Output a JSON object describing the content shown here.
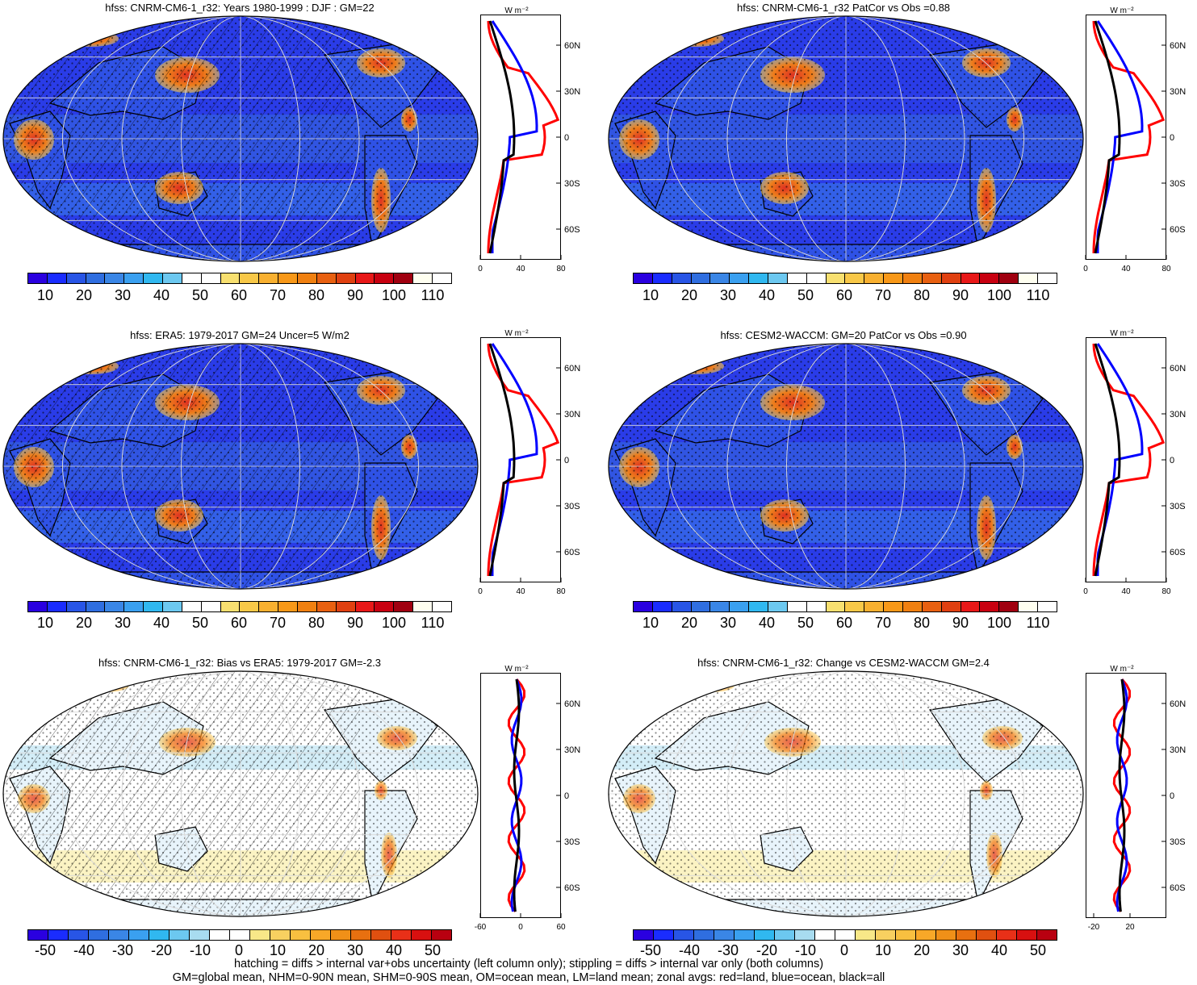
{
  "panels": [
    {
      "title": "hfss: CNRM-CM6-1_r32: Years 1980-1999 : DJF : GM=22",
      "kind": "clim",
      "hatch": true
    },
    {
      "title": "hfss: CNRM-CM6-1_r32 PatCor vs Obs =0.88",
      "kind": "clim",
      "hatch": false
    },
    {
      "title": "hfss: ERA5: 1979-2017 GM=24 Uncer=5 W/m2",
      "kind": "clim",
      "hatch": true
    },
    {
      "title": "hfss: CESM2-WACCM: GM=20 PatCor vs Obs =0.90",
      "kind": "clim",
      "hatch": false
    },
    {
      "title": "hfss: CNRM-CM6-1_r32: Bias vs ERA5: 1979-2017 GM=-2.3",
      "kind": "diff",
      "hatch": true
    },
    {
      "title": "hfss: CNRM-CM6-1_r32: Change vs CESM2-WACCM GM=2.4",
      "kind": "diff",
      "hatch": false
    }
  ],
  "colorbar_clim": {
    "labels": [
      "10",
      "20",
      "30",
      "40",
      "50",
      "60",
      "70",
      "80",
      "90",
      "100",
      "110"
    ],
    "colors": [
      "#2a00e0",
      "#1a2cff",
      "#2855e6",
      "#2f6ee0",
      "#3a86e6",
      "#3aa0f0",
      "#30b8f0",
      "#6cc8f0",
      "#ffffff",
      "#ffffff",
      "#f8e070",
      "#f8c848",
      "#f8b030",
      "#f89818",
      "#f08010",
      "#e86010",
      "#e04010",
      "#e81818",
      "#c80010",
      "#a00010",
      "#fffff0",
      "#ffffff"
    ]
  },
  "colorbar_diff": {
    "labels": [
      "-50",
      "-40",
      "-30",
      "-20",
      "-10",
      "0",
      "10",
      "20",
      "30",
      "40",
      "50"
    ],
    "colors": [
      "#2a00e0",
      "#1a2cff",
      "#2855e6",
      "#2f6ee0",
      "#3a86e6",
      "#3aa0f0",
      "#30b8f0",
      "#6cc8f0",
      "#a8dcf0",
      "#ffffff",
      "#ffffff",
      "#f8e888",
      "#f8d060",
      "#f8c040",
      "#f8a828",
      "#f09018",
      "#e87010",
      "#e05010",
      "#e83018",
      "#d81010",
      "#b80010"
    ]
  },
  "zonal_axis": {
    "unit": "W m⁻²",
    "lat_ticks": [
      "60N",
      "30N",
      "0",
      "30S",
      "60S"
    ],
    "x_ticks_clim": [
      "0",
      "40",
      "80"
    ],
    "x_ticks_diff_left": [
      "-60",
      "0",
      "60"
    ],
    "x_ticks_diff_right": [
      "-20",
      "20"
    ]
  },
  "legend_colors": {
    "land": "#ff0000",
    "ocean": "#0000ff",
    "all": "#000000"
  },
  "footer": {
    "line1": "hatching = diffs > internal var+obs uncertainty (left column only); stippling = diffs > internal var only (both columns)",
    "line2": "GM=global mean, NHM=0-90N mean, SHM=0-90S mean, OM=ocean mean, LM=land mean; zonal avgs: red=land, blue=ocean, black=all"
  }
}
